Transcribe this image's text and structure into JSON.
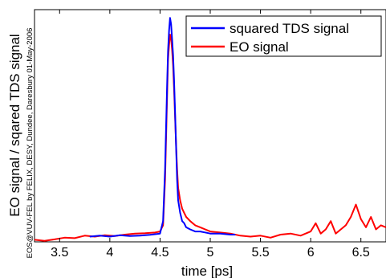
{
  "watermark": "EOS@VUV-FEL by FELIX, DESY, Dundee, Daresbury 01-May-2006",
  "chart_data": {
    "type": "line",
    "title": "",
    "xlabel": "time [ps]",
    "ylabel": "EO signal / sqared TDS signal",
    "xlim": [
      3.25,
      6.75
    ],
    "ylim": [
      0,
      1.12
    ],
    "x_ticks": [
      3.5,
      4,
      4.5,
      5,
      5.5,
      6,
      6.5
    ],
    "x_tick_labels": [
      "3.5",
      "4",
      "4.5",
      "5",
      "5.5",
      "6",
      "6.5"
    ],
    "y_tick_labels": [],
    "grid": false,
    "legend_position": "top-right",
    "series": [
      {
        "name": "squared TDS signal",
        "color": "#0000ff",
        "x": [
          3.8,
          3.9,
          4.0,
          4.1,
          4.2,
          4.3,
          4.4,
          4.5,
          4.53,
          4.55,
          4.57,
          4.58,
          4.59,
          4.6,
          4.61,
          4.62,
          4.63,
          4.64,
          4.65,
          4.66,
          4.67,
          4.68,
          4.7,
          4.72,
          4.74,
          4.76,
          4.8,
          4.85,
          4.9,
          5.0,
          5.1,
          5.2,
          5.25
        ],
        "y": [
          0.025,
          0.03,
          0.025,
          0.032,
          0.028,
          0.03,
          0.034,
          0.04,
          0.1,
          0.35,
          0.75,
          0.92,
          1.02,
          1.08,
          1.05,
          0.98,
          0.9,
          0.78,
          0.62,
          0.45,
          0.3,
          0.2,
          0.14,
          0.1,
          0.09,
          0.07,
          0.06,
          0.05,
          0.05,
          0.04,
          0.04,
          0.035,
          0.035
        ]
      },
      {
        "name": "EO signal",
        "color": "#ff0000",
        "x": [
          3.25,
          3.35,
          3.45,
          3.55,
          3.65,
          3.75,
          3.85,
          3.95,
          4.05,
          4.15,
          4.25,
          4.35,
          4.45,
          4.5,
          4.53,
          4.55,
          4.57,
          4.58,
          4.59,
          4.6,
          4.61,
          4.62,
          4.63,
          4.64,
          4.65,
          4.66,
          4.67,
          4.68,
          4.7,
          4.72,
          4.74,
          4.76,
          4.8,
          4.85,
          4.9,
          5.0,
          5.1,
          5.2,
          5.3,
          5.4,
          5.5,
          5.6,
          5.7,
          5.8,
          5.9,
          6.0,
          6.05,
          6.1,
          6.15,
          6.2,
          6.25,
          6.3,
          6.35,
          6.4,
          6.45,
          6.5,
          6.55,
          6.6,
          6.65,
          6.7,
          6.75
        ],
        "y": [
          0.01,
          0.005,
          0.012,
          0.02,
          0.018,
          0.03,
          0.025,
          0.032,
          0.028,
          0.035,
          0.04,
          0.042,
          0.045,
          0.05,
          0.08,
          0.3,
          0.7,
          0.88,
          0.95,
          1.0,
          0.98,
          0.93,
          0.85,
          0.74,
          0.6,
          0.46,
          0.35,
          0.26,
          0.2,
          0.16,
          0.14,
          0.12,
          0.1,
          0.08,
          0.07,
          0.05,
          0.045,
          0.04,
          0.03,
          0.025,
          0.03,
          0.02,
          0.035,
          0.04,
          0.03,
          0.05,
          0.09,
          0.04,
          0.06,
          0.1,
          0.04,
          0.06,
          0.08,
          0.12,
          0.18,
          0.11,
          0.07,
          0.12,
          0.06,
          0.08,
          0.07
        ]
      }
    ]
  }
}
